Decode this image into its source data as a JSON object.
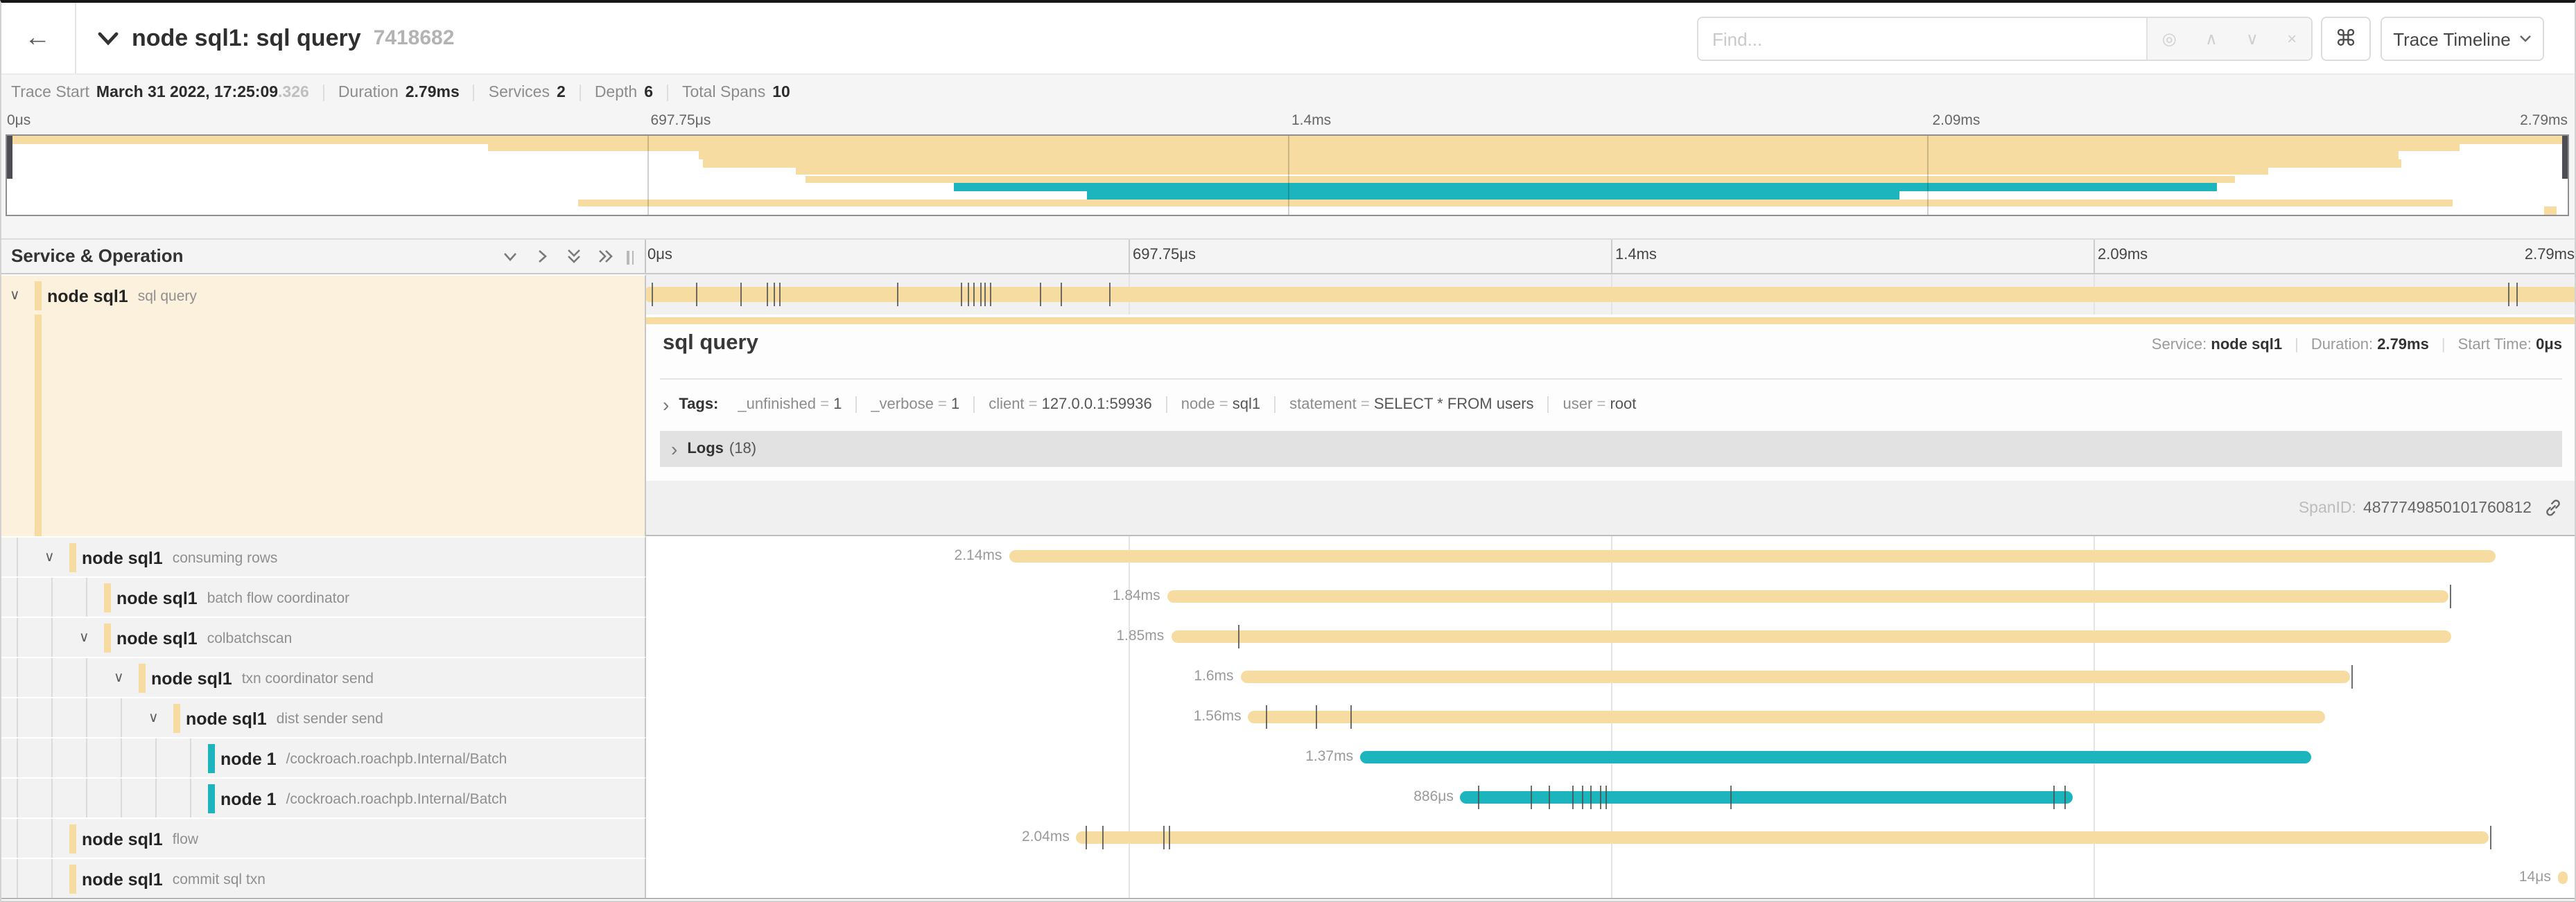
{
  "colors": {
    "tan": "#F6DCA0",
    "teal": "#1CB5BD",
    "selected_row_bg": "#FBF1DC"
  },
  "header": {
    "back_arrow": "←",
    "title": "node sql1: sql query",
    "trace_id": "7418682",
    "find_placeholder": "Find...",
    "shortcuts_icon": "⌘",
    "view_button": "Trace Timeline",
    "find_tools": [
      "target-icon",
      "prev-result",
      "next-result",
      "clear"
    ]
  },
  "trace_info": {
    "items": [
      {
        "label": "Trace Start",
        "value": "March 31 2022, 17:25:09",
        "suffix": ".326"
      },
      {
        "label": "Duration",
        "value": "2.79ms"
      },
      {
        "label": "Services",
        "value": "2"
      },
      {
        "label": "Depth",
        "value": "6"
      },
      {
        "label": "Total Spans",
        "value": "10"
      }
    ]
  },
  "axis": {
    "ticks": [
      "0μs",
      "697.75μs",
      "1.4ms",
      "2.09ms",
      "2.79ms"
    ]
  },
  "left_panel": {
    "title": "Service & Operation"
  },
  "detail": {
    "title": "sql query",
    "service_label": "Service:",
    "service": "node sql1",
    "duration_label": "Duration:",
    "duration": "2.79ms",
    "start_label": "Start Time:",
    "start": "0μs",
    "tags_label": "Tags:",
    "tags": [
      {
        "key": "_unfinished",
        "value": "1"
      },
      {
        "key": "_verbose",
        "value": "1"
      },
      {
        "key": "client",
        "value": "127.0.0.1:59936"
      },
      {
        "key": "node",
        "value": "sql1"
      },
      {
        "key": "statement",
        "value": "SELECT * FROM users"
      },
      {
        "key": "user",
        "value": "root"
      }
    ],
    "logs_label": "Logs",
    "logs_count": "(18)",
    "span_id_label": "SpanID:",
    "span_id": "4877749850101760812"
  },
  "spans": [
    {
      "service": "node sql1",
      "operation": "sql query",
      "level": 0,
      "expander": true,
      "selected": true,
      "color": "tan",
      "start": 0.0,
      "width": 1.0,
      "duration": "",
      "ticks": [
        0.003,
        0.0256,
        0.0487,
        0.0623,
        0.0659,
        0.0692,
        0.1301,
        0.1632,
        0.1665,
        0.1697,
        0.173,
        0.1755,
        0.178,
        0.2043,
        0.2151,
        0.2403,
        0.965,
        0.9694
      ]
    },
    {
      "service": "node sql1",
      "operation": "consuming rows",
      "level": 1,
      "expander": true,
      "selected": false,
      "color": "tan",
      "start": 0.188,
      "width": 0.77,
      "duration": "2.14ms",
      "ticks": []
    },
    {
      "service": "node sql1",
      "operation": "batch flow coordinator",
      "level": 2,
      "expander": false,
      "selected": false,
      "color": "tan",
      "start": 0.27,
      "width": 0.664,
      "duration": "1.84ms",
      "ticks": [
        0.9345
      ]
    },
    {
      "service": "node sql1",
      "operation": "colbatchscan",
      "level": 2,
      "expander": true,
      "selected": false,
      "color": "tan",
      "start": 0.272,
      "width": 0.663,
      "duration": "1.85ms",
      "ticks": [
        0.307
      ]
    },
    {
      "service": "node sql1",
      "operation": "txn coordinator send",
      "level": 3,
      "expander": true,
      "selected": false,
      "color": "tan",
      "start": 0.308,
      "width": 0.575,
      "duration": "1.6ms",
      "ticks": [
        0.8835
      ]
    },
    {
      "service": "node sql1",
      "operation": "dist sender send",
      "level": 4,
      "expander": true,
      "selected": false,
      "color": "tan",
      "start": 0.312,
      "width": 0.558,
      "duration": "1.56ms",
      "ticks": [
        0.321,
        0.347,
        0.365
      ]
    },
    {
      "service": "node 1",
      "operation": "/cockroach.roachpb.Internal/Batch",
      "level": 5,
      "expander": false,
      "selected": false,
      "color": "teal",
      "start": 0.37,
      "width": 0.493,
      "duration": "1.37ms",
      "ticks": []
    },
    {
      "service": "node 1",
      "operation": "/cockroach.roachpb.Internal/Batch",
      "level": 5,
      "expander": false,
      "selected": false,
      "color": "teal",
      "start": 0.422,
      "width": 0.317,
      "duration": "886μs",
      "ticks": [
        0.431,
        0.458,
        0.468,
        0.48,
        0.485,
        0.489,
        0.494,
        0.497,
        0.562,
        0.729,
        0.735
      ]
    },
    {
      "service": "node sql1",
      "operation": "flow",
      "level": 1,
      "expander": false,
      "selected": false,
      "color": "tan",
      "start": 0.223,
      "width": 0.732,
      "duration": "2.04ms",
      "ticks": [
        0.228,
        0.236,
        0.268,
        0.271,
        0.9557
      ]
    },
    {
      "service": "node sql1",
      "operation": "commit sql txn",
      "level": 1,
      "expander": false,
      "selected": false,
      "color": "tan",
      "start": 0.9906,
      "width": 0.005,
      "duration": "14μs",
      "ticks": []
    }
  ]
}
